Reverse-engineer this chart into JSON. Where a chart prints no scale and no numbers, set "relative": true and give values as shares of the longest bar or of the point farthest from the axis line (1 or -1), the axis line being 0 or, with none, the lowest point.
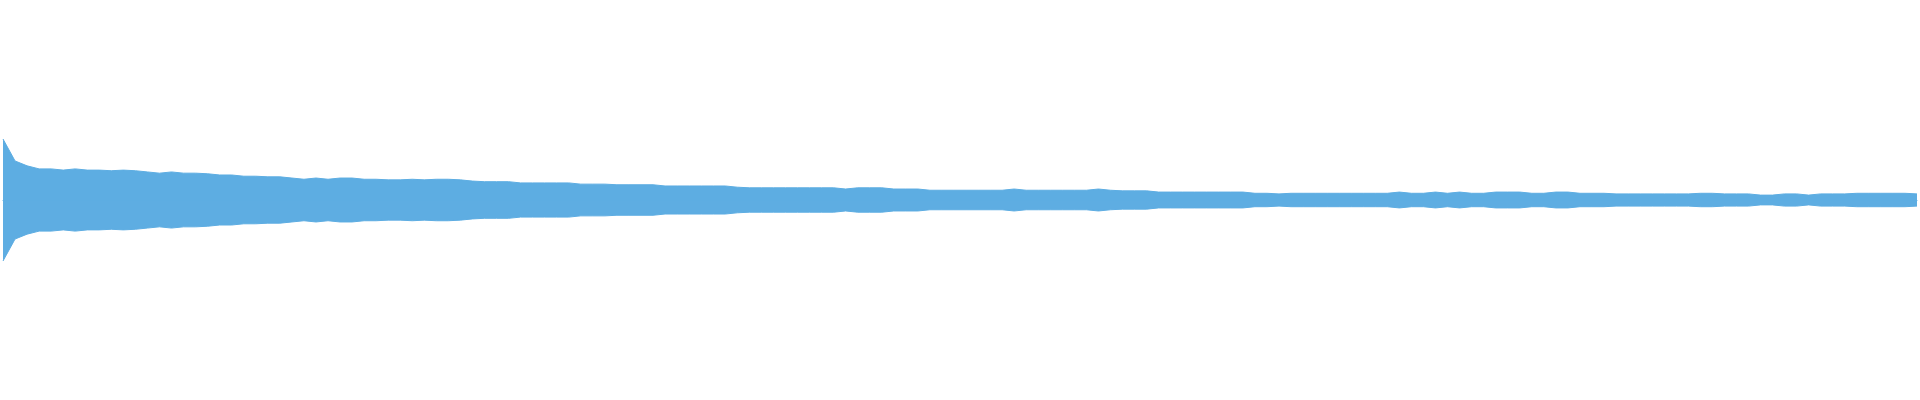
{
  "chart_data": {
    "type": "area",
    "relative": true,
    "categories": [
      null,
      null,
      null,
      null,
      null,
      null,
      null,
      null,
      null,
      null,
      null,
      null,
      null,
      null,
      null,
      null,
      null,
      null,
      null,
      null,
      null,
      null,
      null,
      null,
      null,
      null,
      null,
      null,
      null,
      null,
      null,
      null,
      null,
      null,
      null,
      null,
      null,
      null,
      null,
      null,
      null,
      null,
      null,
      null,
      null,
      null,
      null,
      null,
      null,
      null,
      null,
      null,
      null,
      null,
      null,
      null,
      null,
      null,
      null,
      null,
      null,
      null,
      null,
      null,
      null,
      null,
      null,
      null,
      null,
      null,
      null,
      null,
      null,
      null,
      null,
      null,
      null,
      null,
      null,
      null,
      null,
      null,
      null,
      null,
      null,
      null,
      null,
      null,
      null,
      null,
      null,
      null,
      null,
      null,
      null,
      null,
      null,
      null,
      null,
      null,
      null,
      null,
      null,
      null,
      null,
      null,
      null,
      null,
      null,
      null,
      null,
      null,
      null,
      null,
      null,
      null,
      null,
      null,
      null,
      null,
      null,
      null,
      null,
      null,
      null,
      null,
      null,
      null,
      null,
      null,
      null,
      null,
      null,
      null,
      null,
      null,
      null,
      null,
      null,
      null,
      null,
      null,
      null,
      null,
      null,
      null,
      null,
      null,
      null,
      null,
      null,
      null,
      null,
      null,
      null,
      null,
      null,
      null,
      null,
      null
    ],
    "series": [
      {
        "color": "#5dade2",
        "values": [
          1,
          0.64,
          0.56,
          0.51,
          0.51,
          0.49,
          0.51,
          0.49,
          0.49,
          0.48,
          0.49,
          0.48,
          0.46,
          0.44,
          0.46,
          0.44,
          0.44,
          0.43,
          0.41,
          0.41,
          0.39,
          0.39,
          0.38,
          0.38,
          0.36,
          0.34,
          0.36,
          0.34,
          0.36,
          0.36,
          0.34,
          0.34,
          0.33,
          0.33,
          0.34,
          0.33,
          0.34,
          0.34,
          0.33,
          0.31,
          0.3,
          0.3,
          0.3,
          0.28,
          0.28,
          0.28,
          0.28,
          0.28,
          0.26,
          0.26,
          0.26,
          0.25,
          0.25,
          0.25,
          0.25,
          0.23,
          0.23,
          0.23,
          0.23,
          0.23,
          0.23,
          0.21,
          0.2,
          0.2,
          0.2,
          0.2,
          0.2,
          0.2,
          0.2,
          0.2,
          0.18,
          0.2,
          0.2,
          0.2,
          0.18,
          0.18,
          0.18,
          0.16,
          0.16,
          0.16,
          0.16,
          0.16,
          0.16,
          0.16,
          0.18,
          0.16,
          0.16,
          0.16,
          0.16,
          0.16,
          0.16,
          0.18,
          0.16,
          0.15,
          0.15,
          0.15,
          0.13,
          0.13,
          0.13,
          0.13,
          0.13,
          0.13,
          0.13,
          0.13,
          0.11,
          0.11,
          0.1,
          0.11,
          0.11,
          0.11,
          0.11,
          0.11,
          0.11,
          0.11,
          0.11,
          0.11,
          0.13,
          0.11,
          0.11,
          0.13,
          0.11,
          0.13,
          0.11,
          0.11,
          0.13,
          0.13,
          0.13,
          0.11,
          0.11,
          0.13,
          0.13,
          0.11,
          0.11,
          0.11,
          0.1,
          0.1,
          0.1,
          0.1,
          0.1,
          0.1,
          0.1,
          0.11,
          0.11,
          0.1,
          0.1,
          0.1,
          0.08,
          0.08,
          0.1,
          0.1,
          0.08,
          0.1,
          0.1,
          0.1,
          0.11,
          0.11,
          0.11,
          0.11,
          0.11,
          0.1
        ]
      },
      {
        "color": "#5eade2",
        "values": [
          -1,
          -0.64,
          -0.56,
          -0.51,
          -0.51,
          -0.49,
          -0.51,
          -0.49,
          -0.49,
          -0.48,
          -0.49,
          -0.48,
          -0.46,
          -0.44,
          -0.46,
          -0.44,
          -0.44,
          -0.43,
          -0.41,
          -0.41,
          -0.39,
          -0.39,
          -0.38,
          -0.38,
          -0.36,
          -0.34,
          -0.36,
          -0.34,
          -0.36,
          -0.36,
          -0.34,
          -0.34,
          -0.33,
          -0.33,
          -0.34,
          -0.33,
          -0.34,
          -0.34,
          -0.33,
          -0.31,
          -0.3,
          -0.3,
          -0.3,
          -0.28,
          -0.28,
          -0.28,
          -0.28,
          -0.28,
          -0.26,
          -0.26,
          -0.26,
          -0.25,
          -0.25,
          -0.25,
          -0.25,
          -0.23,
          -0.23,
          -0.23,
          -0.23,
          -0.23,
          -0.23,
          -0.21,
          -0.2,
          -0.2,
          -0.2,
          -0.2,
          -0.2,
          -0.2,
          -0.2,
          -0.2,
          -0.18,
          -0.2,
          -0.2,
          -0.2,
          -0.18,
          -0.18,
          -0.18,
          -0.16,
          -0.16,
          -0.16,
          -0.16,
          -0.16,
          -0.16,
          -0.16,
          -0.18,
          -0.16,
          -0.16,
          -0.16,
          -0.16,
          -0.16,
          -0.16,
          -0.18,
          -0.16,
          -0.15,
          -0.15,
          -0.15,
          -0.13,
          -0.13,
          -0.13,
          -0.13,
          -0.13,
          -0.13,
          -0.13,
          -0.13,
          -0.11,
          -0.11,
          -0.1,
          -0.11,
          -0.11,
          -0.11,
          -0.11,
          -0.11,
          -0.11,
          -0.11,
          -0.11,
          -0.11,
          -0.13,
          -0.11,
          -0.11,
          -0.13,
          -0.11,
          -0.13,
          -0.11,
          -0.11,
          -0.13,
          -0.13,
          -0.13,
          -0.11,
          -0.11,
          -0.13,
          -0.13,
          -0.11,
          -0.11,
          -0.11,
          -0.1,
          -0.1,
          -0.1,
          -0.1,
          -0.1,
          -0.1,
          -0.1,
          -0.11,
          -0.11,
          -0.1,
          -0.1,
          -0.1,
          -0.08,
          -0.08,
          -0.1,
          -0.1,
          -0.08,
          -0.1,
          -0.1,
          -0.1,
          -0.11,
          -0.11,
          -0.11,
          -0.11,
          -0.11,
          -0.1
        ]
      }
    ]
  }
}
